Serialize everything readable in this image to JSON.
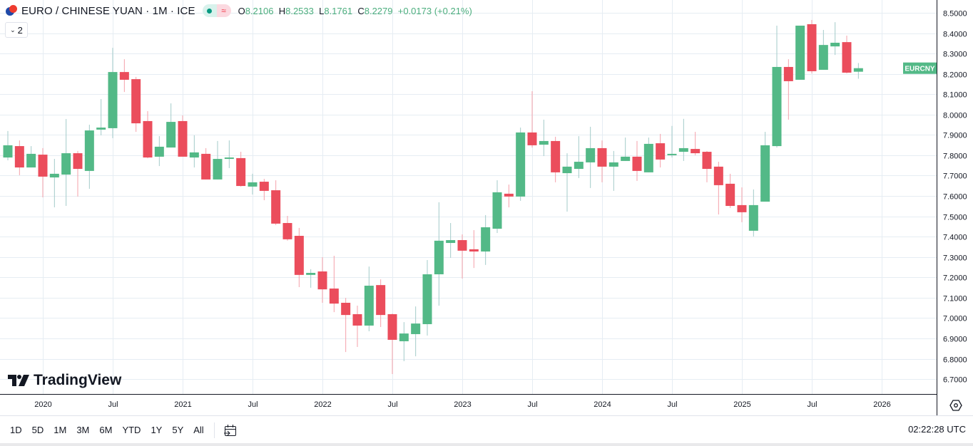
{
  "header": {
    "title": "EURO / CHINESE YUAN · 1M · ICE",
    "badge_icons": [
      "market-open-dot-icon",
      "delayed-data-icon"
    ],
    "delayed_symbol": "≈",
    "ohlc": {
      "o_label": "O",
      "o": "8.2106",
      "h_label": "H",
      "h": "8.2533",
      "l_label": "L",
      "l": "8.1761",
      "c_label": "C",
      "c": "8.2279",
      "change": "+0.0173 (+0.21%)"
    },
    "collapse_count": "2"
  },
  "logo": {
    "text": "TradingView"
  },
  "toolbar": {
    "timeframes": [
      "1D",
      "5D",
      "1M",
      "3M",
      "6M",
      "YTD",
      "1Y",
      "5Y",
      "All"
    ],
    "clock": "02:22:28 UTC"
  },
  "colors": {
    "up": "#53b987",
    "down": "#eb4d5c",
    "up_wick": "#a3cbc9",
    "down_wick": "#f5a0aa",
    "grid": "#e6edf3"
  },
  "chart_data": {
    "type": "candlestick",
    "symbol_label": "EURCNY",
    "interval": "1M",
    "ylim": [
      6.65,
      8.55
    ],
    "y_ticks": [
      "8.5000",
      "8.4000",
      "8.3000",
      "8.2000",
      "8.1000",
      "8.0000",
      "7.9000",
      "7.8000",
      "7.7000",
      "7.6000",
      "7.5000",
      "7.4000",
      "7.3000",
      "7.2000",
      "7.1000",
      "7.0000",
      "6.9000",
      "6.8000",
      "6.7000"
    ],
    "x_ticks": [
      {
        "label": "2020",
        "date": "2020-01"
      },
      {
        "label": "Jul",
        "date": "2020-07"
      },
      {
        "label": "2021",
        "date": "2021-01"
      },
      {
        "label": "Jul",
        "date": "2021-07"
      },
      {
        "label": "2022",
        "date": "2022-01"
      },
      {
        "label": "Jul",
        "date": "2022-07"
      },
      {
        "label": "2023",
        "date": "2023-01"
      },
      {
        "label": "Jul",
        "date": "2023-07"
      },
      {
        "label": "2024",
        "date": "2024-01"
      },
      {
        "label": "Jul",
        "date": "2024-07"
      },
      {
        "label": "2025",
        "date": "2025-01"
      },
      {
        "label": "Jul",
        "date": "2025-07"
      },
      {
        "label": "2026",
        "date": "2026-01"
      }
    ],
    "grid": true,
    "candles_columns": [
      "date",
      "open",
      "high",
      "low",
      "close"
    ],
    "candles": [
      [
        "2019-10",
        7.789,
        7.919,
        7.775,
        7.849
      ],
      [
        "2019-11",
        7.845,
        7.873,
        7.702,
        7.74
      ],
      [
        "2019-12",
        7.74,
        7.845,
        7.74,
        7.807
      ],
      [
        "2020-01",
        7.803,
        7.835,
        7.593,
        7.695
      ],
      [
        "2020-02",
        7.691,
        7.782,
        7.544,
        7.709
      ],
      [
        "2020-03",
        7.705,
        7.978,
        7.551,
        7.81
      ],
      [
        "2020-04",
        7.81,
        7.821,
        7.597,
        7.733
      ],
      [
        "2020-05",
        7.723,
        7.95,
        7.635,
        7.922
      ],
      [
        "2020-06",
        7.926,
        8.076,
        7.898,
        7.936
      ],
      [
        "2020-07",
        7.933,
        8.328,
        7.884,
        8.209
      ],
      [
        "2020-08",
        8.209,
        8.272,
        8.111,
        8.171
      ],
      [
        "2020-09",
        8.174,
        8.185,
        7.915,
        7.957
      ],
      [
        "2020-10",
        7.968,
        8.017,
        7.785,
        7.789
      ],
      [
        "2020-11",
        7.793,
        7.894,
        7.747,
        7.842
      ],
      [
        "2020-12",
        7.838,
        8.055,
        7.838,
        7.964
      ],
      [
        "2021-01",
        7.968,
        7.996,
        7.793,
        7.793
      ],
      [
        "2021-02",
        7.789,
        7.898,
        7.74,
        7.814
      ],
      [
        "2021-03",
        7.807,
        7.835,
        7.681,
        7.681
      ],
      [
        "2021-04",
        7.681,
        7.87,
        7.681,
        7.782
      ],
      [
        "2021-05",
        7.782,
        7.873,
        7.737,
        7.789
      ],
      [
        "2021-06",
        7.786,
        7.817,
        7.646,
        7.649
      ],
      [
        "2021-07",
        7.646,
        7.709,
        7.607,
        7.667
      ],
      [
        "2021-08",
        7.67,
        7.684,
        7.579,
        7.625
      ],
      [
        "2021-09",
        7.628,
        7.677,
        7.457,
        7.464
      ],
      [
        "2021-10",
        7.467,
        7.502,
        7.38,
        7.387
      ],
      [
        "2021-11",
        7.404,
        7.443,
        7.152,
        7.212
      ],
      [
        "2021-12",
        7.212,
        7.24,
        7.149,
        7.222
      ],
      [
        "2022-01",
        7.229,
        7.299,
        7.075,
        7.141
      ],
      [
        "2022-02",
        7.145,
        7.306,
        7.029,
        7.071
      ],
      [
        "2022-03",
        7.075,
        7.099,
        6.833,
        7.015
      ],
      [
        "2022-04",
        7.019,
        7.061,
        6.858,
        6.963
      ],
      [
        "2022-05",
        6.963,
        7.253,
        6.935,
        7.159
      ],
      [
        "2022-06",
        7.162,
        7.19,
        6.956,
        7.015
      ],
      [
        "2022-07",
        7.019,
        7.022,
        6.725,
        6.893
      ],
      [
        "2022-08",
        6.886,
        6.98,
        6.788,
        6.924
      ],
      [
        "2022-09",
        6.921,
        7.057,
        6.812,
        6.973
      ],
      [
        "2022-10",
        6.97,
        7.285,
        6.914,
        7.215
      ],
      [
        "2022-11",
        7.215,
        7.569,
        7.061,
        7.38
      ],
      [
        "2022-12",
        7.369,
        7.467,
        7.296,
        7.383
      ],
      [
        "2023-01",
        7.383,
        7.411,
        7.194,
        7.331
      ],
      [
        "2023-02",
        7.338,
        7.432,
        7.246,
        7.327
      ],
      [
        "2023-03",
        7.327,
        7.506,
        7.261,
        7.446
      ],
      [
        "2023-04",
        7.439,
        7.677,
        7.418,
        7.618
      ],
      [
        "2023-05",
        7.611,
        7.656,
        7.544,
        7.597
      ],
      [
        "2023-06",
        7.597,
        7.936,
        7.576,
        7.912
      ],
      [
        "2023-07",
        7.912,
        8.115,
        7.838,
        7.849
      ],
      [
        "2023-08",
        7.852,
        7.975,
        7.796,
        7.87
      ],
      [
        "2023-09",
        7.87,
        7.891,
        7.667,
        7.716
      ],
      [
        "2023-10",
        7.712,
        7.81,
        7.523,
        7.744
      ],
      [
        "2023-11",
        7.733,
        7.894,
        7.688,
        7.768
      ],
      [
        "2023-12",
        7.765,
        7.94,
        7.639,
        7.835
      ],
      [
        "2024-01",
        7.835,
        7.873,
        7.667,
        7.744
      ],
      [
        "2024-02",
        7.744,
        7.821,
        7.625,
        7.765
      ],
      [
        "2024-03",
        7.772,
        7.887,
        7.772,
        7.793
      ],
      [
        "2024-04",
        7.793,
        7.87,
        7.674,
        7.723
      ],
      [
        "2024-05",
        7.716,
        7.887,
        7.716,
        7.856
      ],
      [
        "2024-06",
        7.859,
        7.905,
        7.74,
        7.779
      ],
      [
        "2024-07",
        7.8,
        7.944,
        7.789,
        7.807
      ],
      [
        "2024-08",
        7.817,
        7.979,
        7.772,
        7.835
      ],
      [
        "2024-09",
        7.831,
        7.915,
        7.8,
        7.81
      ],
      [
        "2024-10",
        7.817,
        7.821,
        7.667,
        7.733
      ],
      [
        "2024-11",
        7.744,
        7.768,
        7.509,
        7.653
      ],
      [
        "2024-12",
        7.66,
        7.709,
        7.541,
        7.551
      ],
      [
        "2025-01",
        7.555,
        7.642,
        7.471,
        7.52
      ],
      [
        "2025-02",
        7.429,
        7.632,
        7.401,
        7.555
      ],
      [
        "2025-03",
        7.572,
        7.915,
        7.572,
        7.849
      ],
      [
        "2025-04",
        7.845,
        8.437,
        7.838,
        8.234
      ],
      [
        "2025-05",
        8.234,
        8.272,
        7.975,
        8.164
      ],
      [
        "2025-06",
        8.171,
        8.437,
        8.171,
        8.437
      ],
      [
        "2025-07",
        8.444,
        8.465,
        8.202,
        8.213
      ],
      [
        "2025-08",
        8.22,
        8.416,
        8.22,
        8.342
      ],
      [
        "2025-09",
        8.335,
        8.454,
        8.293,
        8.353
      ],
      [
        "2025-10",
        8.356,
        8.388,
        8.202,
        8.206
      ],
      [
        "2025-11",
        8.2106,
        8.2533,
        8.1761,
        8.2279
      ]
    ]
  }
}
